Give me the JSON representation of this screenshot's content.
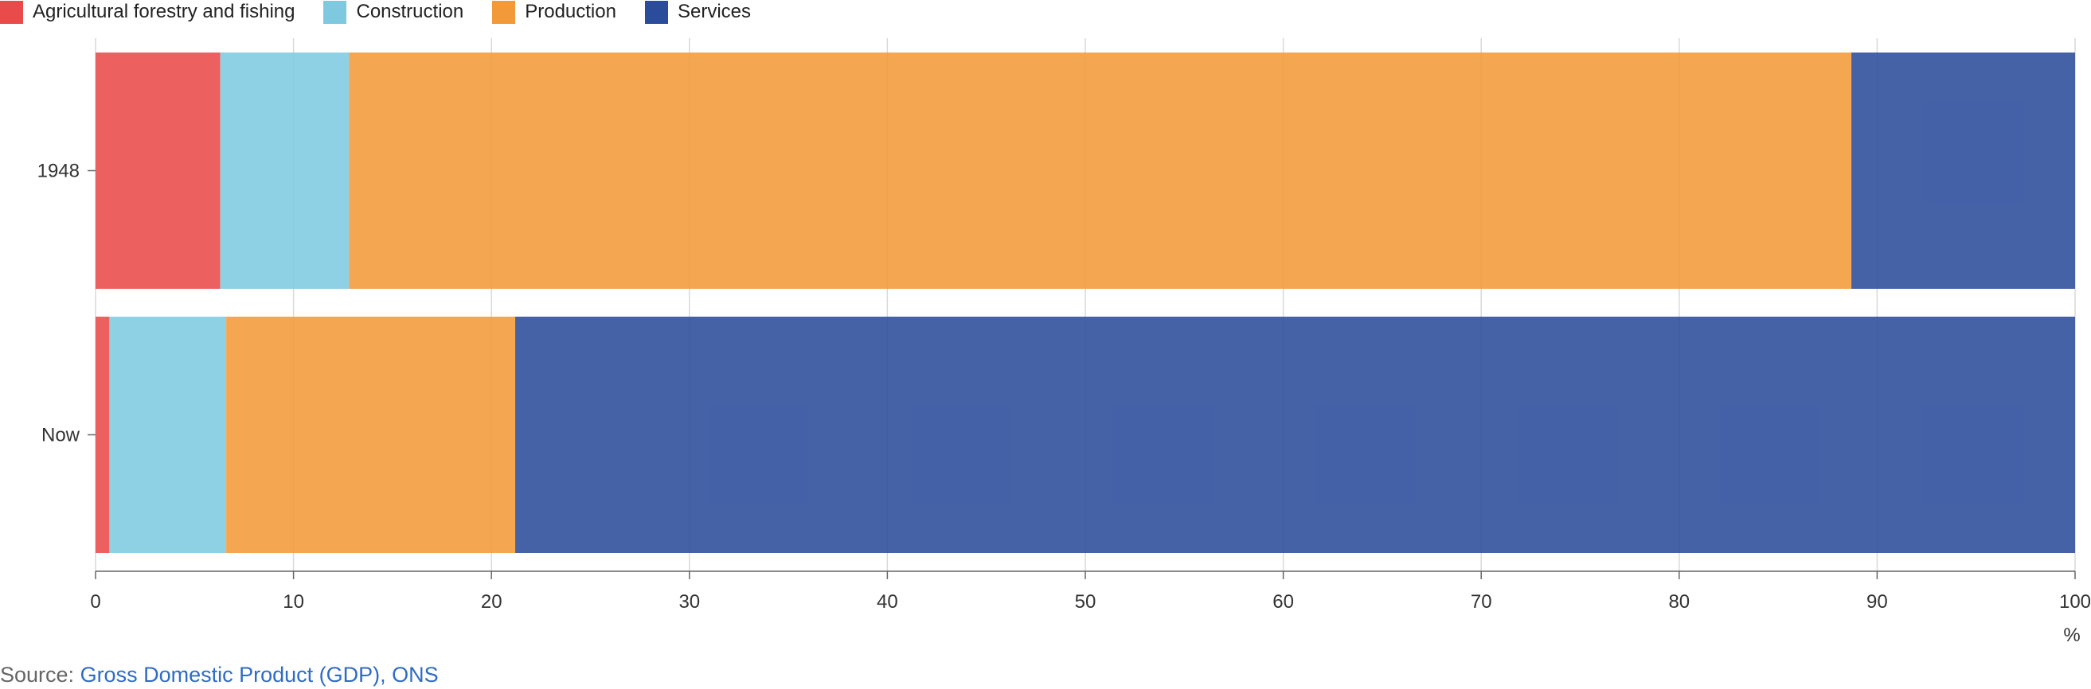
{
  "chart_data": {
    "type": "bar",
    "orientation": "horizontal",
    "stacked": true,
    "categories": [
      "1948",
      "Now"
    ],
    "series": [
      {
        "name": "Agricultural forestry and fishing",
        "color": "#e94a4a",
        "values": [
          6.3,
          0.7
        ]
      },
      {
        "name": "Construction",
        "color": "#7ec9e0",
        "values": [
          6.5,
          5.9
        ]
      },
      {
        "name": "Production",
        "color": "#f29a39",
        "values": [
          75.9,
          14.6
        ]
      },
      {
        "name": "Services",
        "color": "#2b4c9b",
        "values": [
          11.3,
          78.8
        ]
      }
    ],
    "xlim": [
      0,
      100
    ],
    "xticks": [
      0,
      10,
      20,
      30,
      40,
      50,
      60,
      70,
      80,
      90,
      100
    ],
    "xlabel": "%",
    "grid": true,
    "legend_position": "top-left"
  },
  "source": {
    "prefix": "Source: ",
    "link_text": "Gross Domestic Product (GDP), ONS"
  }
}
